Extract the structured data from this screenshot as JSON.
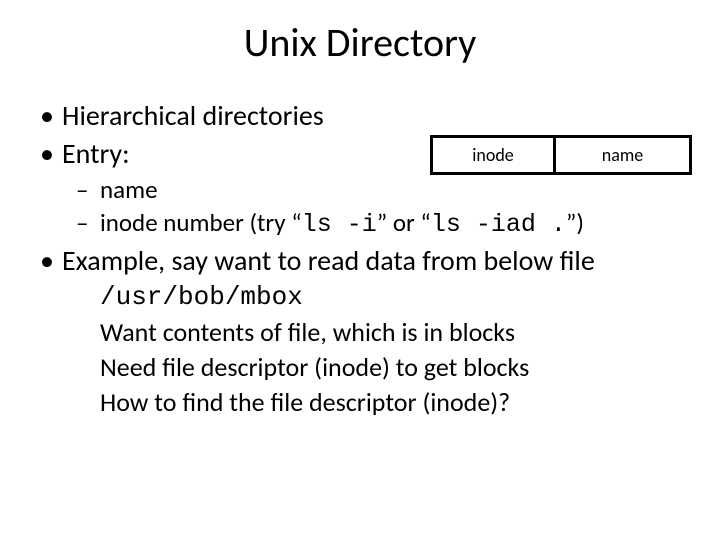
{
  "title": "Unix Directory",
  "entry_table": {
    "row": [
      "inode",
      "name"
    ],
    "bg_color": "#000000",
    "cell_bg": "#ffffff",
    "cell_fontsize": 18
  },
  "bullets": {
    "b1": "Hierarchical directories",
    "b2": "Entry:",
    "b2_1": "name",
    "b2_2_pre": "inode number (try “",
    "b2_2_code1": "ls -i",
    "b2_2_mid": "” or “",
    "b2_2_code2": "ls -iad .",
    "b2_2_post": "”)",
    "b3": "Example, say want to read data from below file"
  },
  "example": {
    "path": "/usr/bob/mbox",
    "l1": "Want contents of file, which is in blocks",
    "l2": "Need file descriptor (inode) to get blocks",
    "l3": "How to find the file descriptor (inode)?"
  }
}
